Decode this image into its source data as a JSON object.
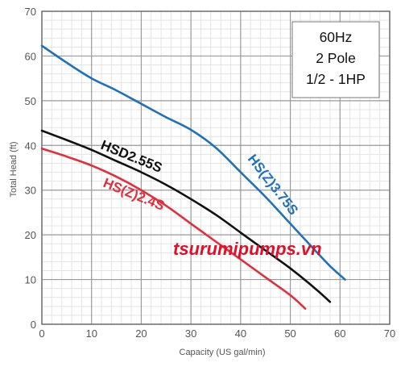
{
  "chart_data": {
    "type": "line",
    "title": "",
    "xlabel": "Capacity (US gal/min)",
    "ylabel": "Total Head (ft)",
    "xlim": [
      0,
      70
    ],
    "ylim": [
      0,
      70
    ],
    "x_ticks": [
      "0",
      "10",
      "20",
      "30",
      "40",
      "50",
      "60",
      "70"
    ],
    "y_ticks": [
      "0",
      "10",
      "20",
      "30",
      "40",
      "50",
      "60",
      "70"
    ],
    "grid": {
      "major": true,
      "minor": true
    },
    "info_box": [
      "60Hz",
      "2 Pole",
      "1/2 - 1HP"
    ],
    "watermark": "tsurumipumps.vn",
    "series": [
      {
        "name": "HS(Z)3.75S",
        "color": "#1f72b8",
        "points": [
          [
            0,
            62.3
          ],
          [
            5,
            58.5
          ],
          [
            10,
            55
          ],
          [
            15,
            52.3
          ],
          [
            20,
            49.3
          ],
          [
            25,
            46.3
          ],
          [
            30,
            43.5
          ],
          [
            35,
            39.5
          ],
          [
            40,
            34
          ],
          [
            45,
            28.5
          ],
          [
            50,
            22.5
          ],
          [
            55,
            16.5
          ],
          [
            58,
            13
          ],
          [
            61,
            10
          ]
        ]
      },
      {
        "name": "HSD2.55S",
        "color": "#111111",
        "points": [
          [
            0,
            43.3
          ],
          [
            5,
            41.2
          ],
          [
            10,
            39
          ],
          [
            15,
            36.5
          ],
          [
            20,
            34
          ],
          [
            25,
            31.2
          ],
          [
            30,
            28
          ],
          [
            35,
            24.5
          ],
          [
            40,
            20.5
          ],
          [
            45,
            16.5
          ],
          [
            50,
            12.5
          ],
          [
            55,
            8
          ],
          [
            58,
            5
          ]
        ]
      },
      {
        "name": "HS(Z)2.4S",
        "color": "#e0303c",
        "points": [
          [
            0,
            39.3
          ],
          [
            5,
            37.5
          ],
          [
            10,
            35.5
          ],
          [
            15,
            33
          ],
          [
            20,
            30
          ],
          [
            25,
            26.5
          ],
          [
            30,
            22.5
          ],
          [
            35,
            18.5
          ],
          [
            40,
            14.5
          ],
          [
            45,
            10.5
          ],
          [
            50,
            6.5
          ],
          [
            53,
            3.5
          ]
        ]
      }
    ]
  }
}
